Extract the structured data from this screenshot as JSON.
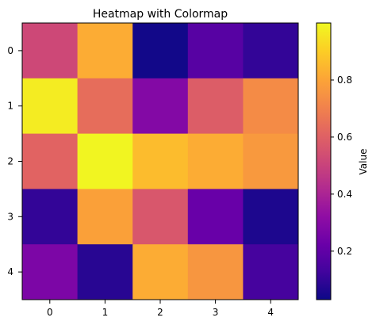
{
  "chart_data": {
    "type": "heatmap",
    "title": "Heatmap with Colormap",
    "xlabel": "",
    "ylabel": "",
    "x_ticks": [
      "0",
      "1",
      "2",
      "3",
      "4"
    ],
    "y_ticks": [
      "0",
      "1",
      "2",
      "3",
      "4"
    ],
    "values": [
      [
        0.52,
        0.82,
        0.04,
        0.18,
        0.1
      ],
      [
        0.97,
        0.64,
        0.29,
        0.59,
        0.73
      ],
      [
        0.61,
        0.99,
        0.86,
        0.82,
        0.77
      ],
      [
        0.1,
        0.79,
        0.57,
        0.22,
        0.06
      ],
      [
        0.27,
        0.08,
        0.82,
        0.76,
        0.14
      ]
    ],
    "colormap": "plasma",
    "colorbar": {
      "label": "Value",
      "range": [
        0.03,
        1.0
      ],
      "ticks": [
        0.2,
        0.4,
        0.6,
        0.8
      ],
      "tick_labels": [
        "0.2",
        "0.4",
        "0.6",
        "0.8"
      ]
    },
    "grid": false
  }
}
